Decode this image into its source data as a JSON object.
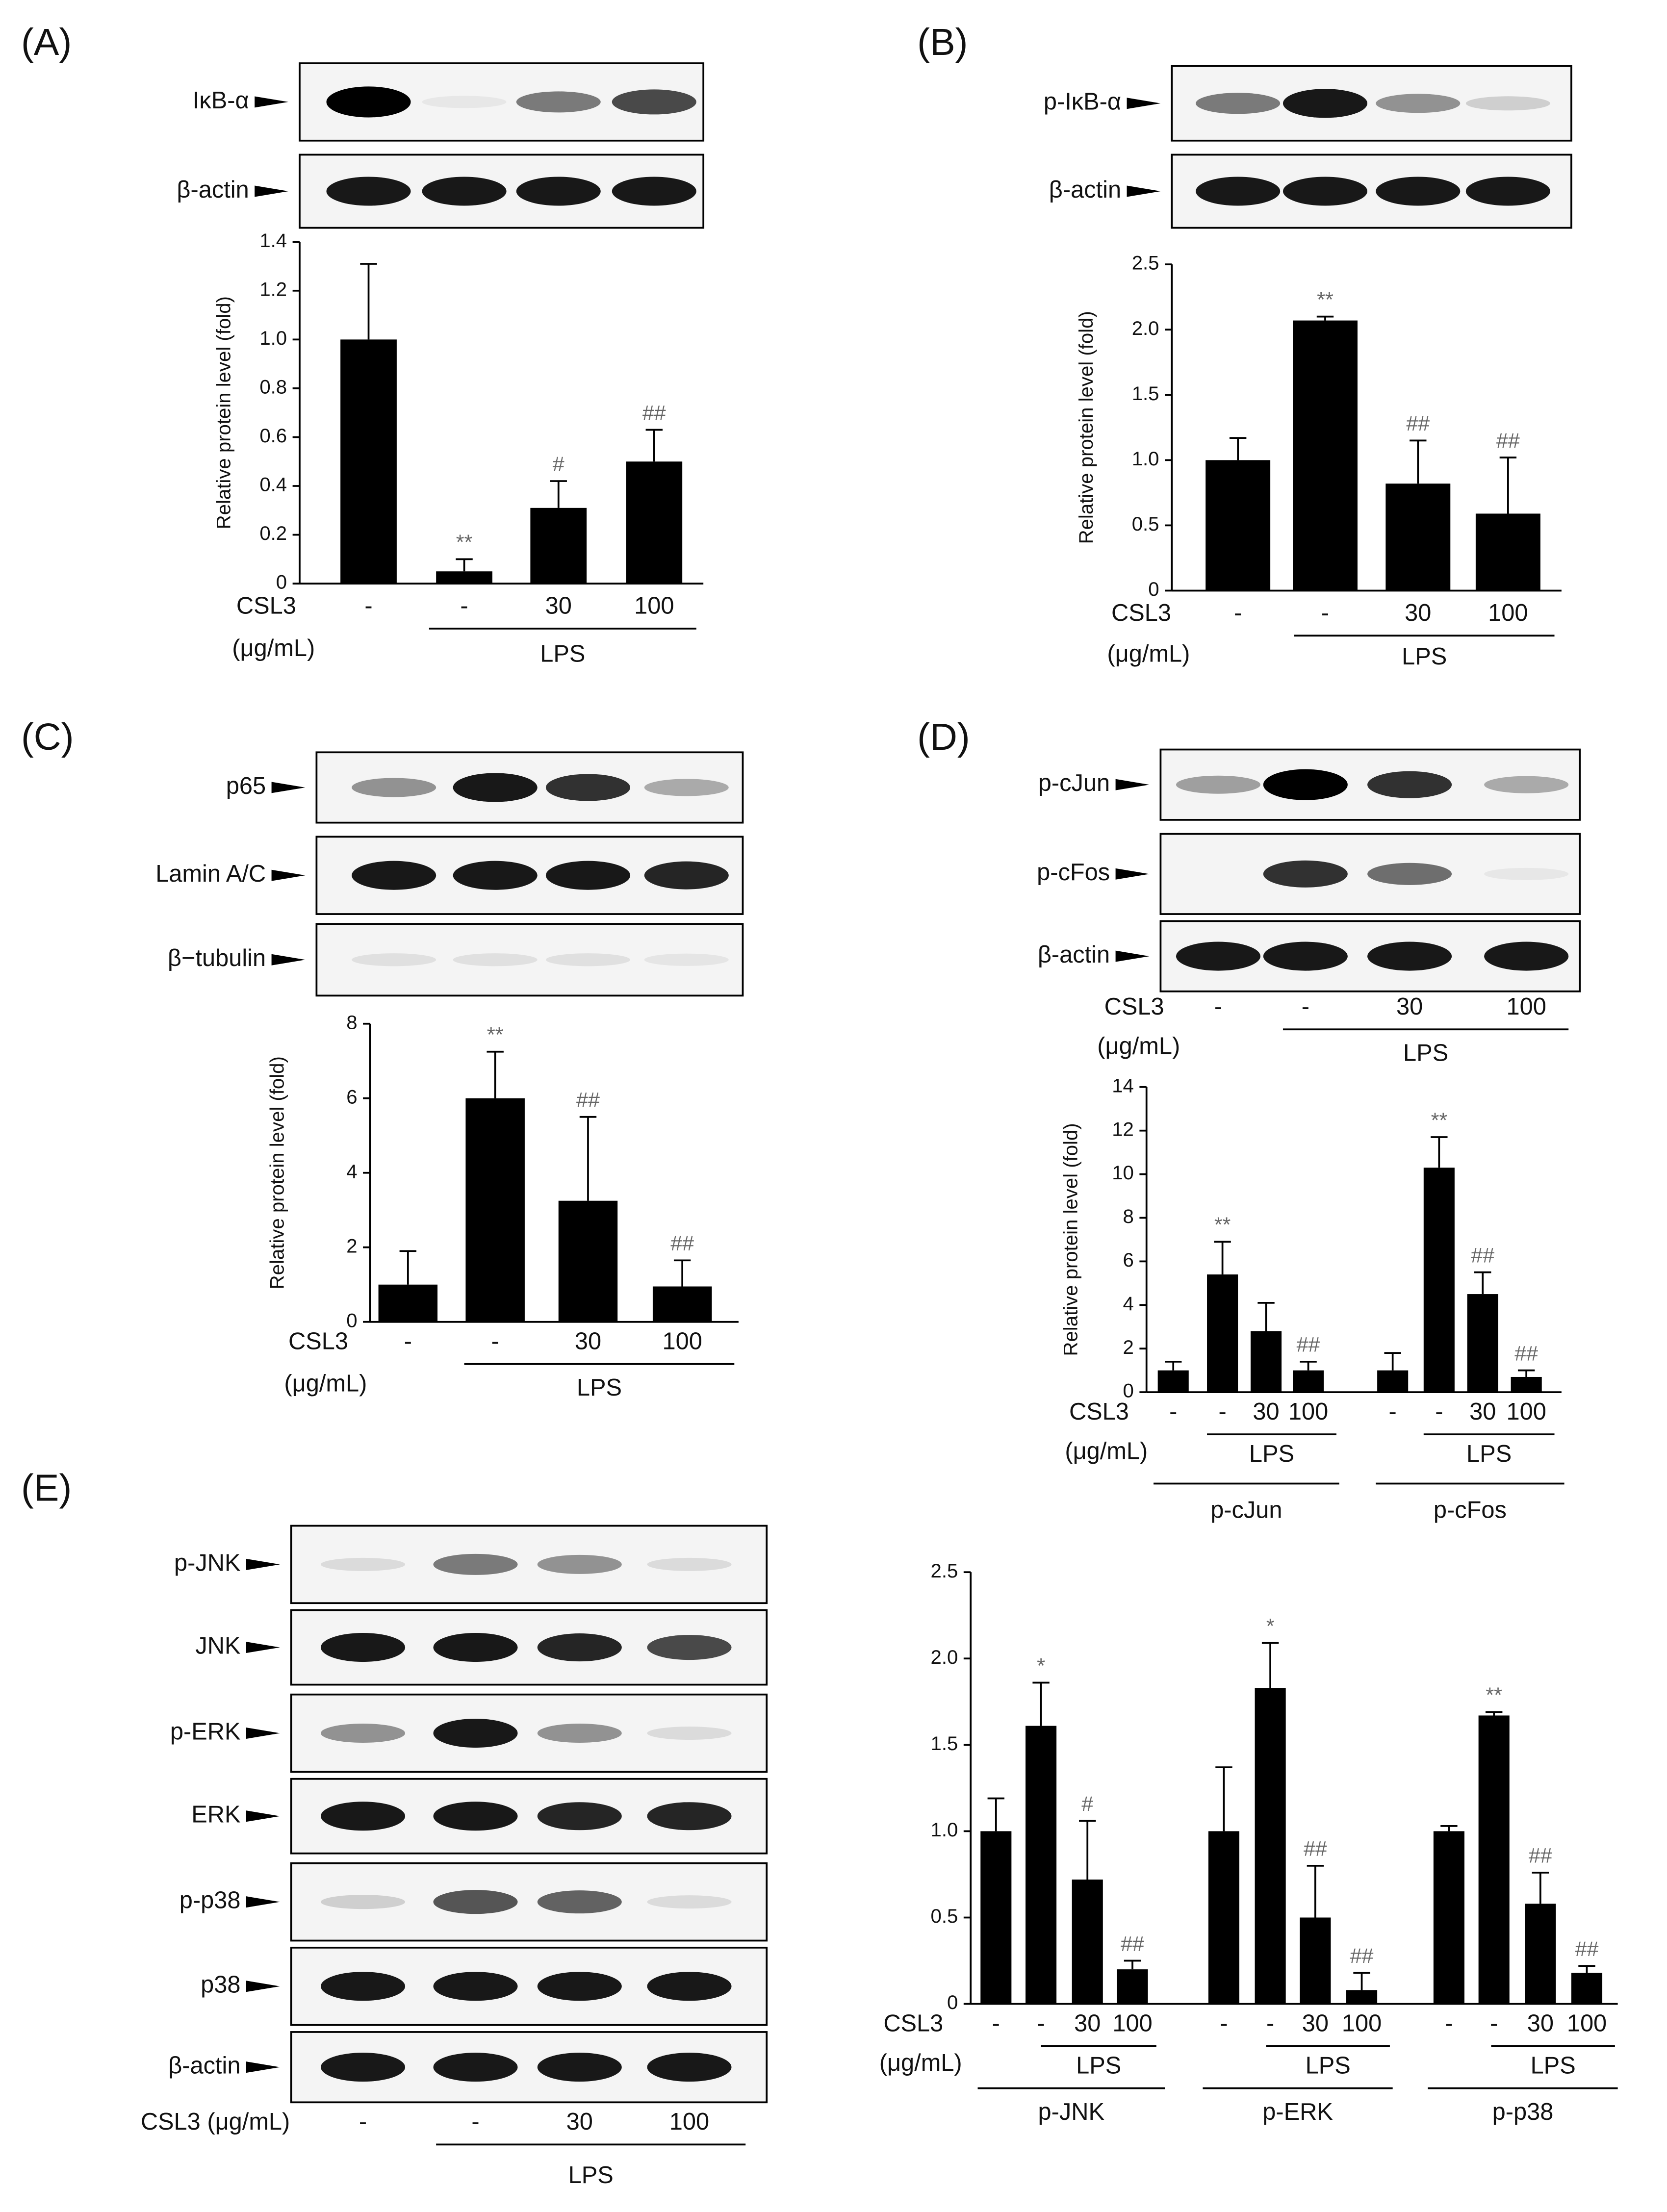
{
  "panels": [
    {
      "label": "(A)",
      "blot_rows": [
        "IκB-α",
        "β-actin"
      ]
    },
    {
      "label": "(B)",
      "blot_rows": [
        "p-IκB-α",
        "β-actin"
      ]
    },
    {
      "label": "(C)",
      "blot_rows": [
        "p65",
        "Lamin A/C",
        "β−tubulin"
      ]
    },
    {
      "label": "(D)",
      "blot_rows": [
        "p-cJun",
        "p-cFos",
        "β-actin"
      ],
      "blot_x": {
        "row_label": "CSL3",
        "unit": "(μg/mL)",
        "categories": [
          "-",
          "-",
          "30",
          "100"
        ],
        "group_label": "LPS"
      }
    },
    {
      "label": "(E)",
      "blot_rows": [
        "p-JNK",
        "JNK",
        "p-ERK",
        "ERK",
        "p-p38",
        "p38",
        "β-actin"
      ],
      "blot_x": {
        "row_label": "CSL3 (μg/mL)",
        "categories": [
          "-",
          "-",
          "30",
          "100"
        ],
        "group_label": "LPS"
      }
    }
  ],
  "chart_data": [
    {
      "type": "bar",
      "ylabel": "Relative protein level (fold)",
      "categories": [
        "-",
        "-",
        "30",
        "100"
      ],
      "x_row_label": "CSL3",
      "x_unit": "(μg/mL)",
      "group_label": "LPS",
      "color": "#000000",
      "values": [
        1.0,
        0.05,
        0.31,
        0.5
      ],
      "errors": [
        0.31,
        0.05,
        0.11,
        0.13
      ],
      "annotations": [
        null,
        "**",
        "#",
        "##"
      ],
      "ylim": [
        0,
        1.4
      ],
      "yticks": [
        0,
        0.2,
        0.4,
        0.6,
        0.8,
        {
          "value": 1,
          "label": "1.0"
        },
        1.2,
        1.4
      ]
    },
    {
      "type": "bar",
      "ylabel": "Relative protein level (fold)",
      "categories": [
        "-",
        "-",
        "30",
        "100"
      ],
      "x_row_label": "CSL3",
      "x_unit": "(μg/mL)",
      "group_label": "LPS",
      "color": "#000000",
      "values": [
        1.0,
        2.07,
        0.82,
        0.59
      ],
      "errors": [
        0.17,
        0.03,
        0.33,
        0.43
      ],
      "annotations": [
        null,
        "**",
        "##",
        "##"
      ],
      "ylim": [
        0,
        2.5
      ],
      "yticks": [
        0,
        0.5,
        {
          "value": 1,
          "label": "1.0"
        },
        1.5,
        {
          "value": 2,
          "label": "2.0"
        },
        2.5
      ]
    },
    {
      "type": "bar",
      "ylabel": "Relative protein level (fold)",
      "categories": [
        "-",
        "-",
        "30",
        "100"
      ],
      "x_row_label": "CSL3",
      "x_unit": "(μg/mL)",
      "group_label": "LPS",
      "color": "#000000",
      "values": [
        1.0,
        6.0,
        3.25,
        0.95
      ],
      "errors": [
        0.9,
        1.25,
        2.25,
        0.7
      ],
      "annotations": [
        null,
        "**",
        "##",
        "##"
      ],
      "ylim": [
        0,
        8
      ],
      "yticks": [
        0,
        2,
        4,
        6,
        8
      ]
    },
    {
      "type": "bar",
      "ylabel": "Relative protein level (fold)",
      "categories": [
        "-",
        "-",
        "30",
        "100"
      ],
      "x_row_label": "CSL3",
      "x_unit": "(μg/mL)",
      "group_label": "LPS",
      "color": "#000000",
      "series": [
        {
          "name": "p-cJun",
          "values": [
            1.0,
            5.4,
            2.8,
            1.0
          ],
          "errors": [
            0.4,
            1.5,
            1.3,
            0.4
          ],
          "annotations": [
            null,
            "**",
            null,
            "##"
          ]
        },
        {
          "name": "p-cFos",
          "values": [
            1.0,
            10.3,
            4.5,
            0.7
          ],
          "errors": [
            0.8,
            1.4,
            1.0,
            0.3
          ],
          "annotations": [
            null,
            "**",
            "##",
            "##"
          ]
        }
      ],
      "ylim": [
        0,
        14
      ],
      "yticks": [
        0,
        2,
        4,
        6,
        8,
        10,
        12,
        14
      ]
    },
    {
      "type": "bar",
      "categories": [
        "-",
        "-",
        "30",
        "100"
      ],
      "x_row_label": "CSL3",
      "x_unit": "(μg/mL)",
      "group_label": "LPS",
      "color": "#000000",
      "series": [
        {
          "name": "p-JNK",
          "values": [
            1.0,
            1.61,
            0.72,
            0.2
          ],
          "errors": [
            0.19,
            0.25,
            0.34,
            0.05
          ],
          "annotations": [
            null,
            "*",
            "#",
            "##"
          ]
        },
        {
          "name": "p-ERK",
          "values": [
            1.0,
            1.83,
            0.5,
            0.08
          ],
          "errors": [
            0.37,
            0.26,
            0.3,
            0.1
          ],
          "annotations": [
            null,
            "*",
            "##",
            "##"
          ]
        },
        {
          "name": "p-p38",
          "values": [
            1.0,
            1.67,
            0.58,
            0.18
          ],
          "errors": [
            0.03,
            0.02,
            0.18,
            0.04
          ],
          "annotations": [
            null,
            "**",
            "##",
            "##"
          ]
        }
      ],
      "ylim": [
        0,
        2.5
      ],
      "yticks": [
        0,
        0.5,
        {
          "value": 1,
          "label": "1.0"
        },
        1.5,
        {
          "value": 2,
          "label": "2.0"
        },
        2.5
      ]
    }
  ]
}
